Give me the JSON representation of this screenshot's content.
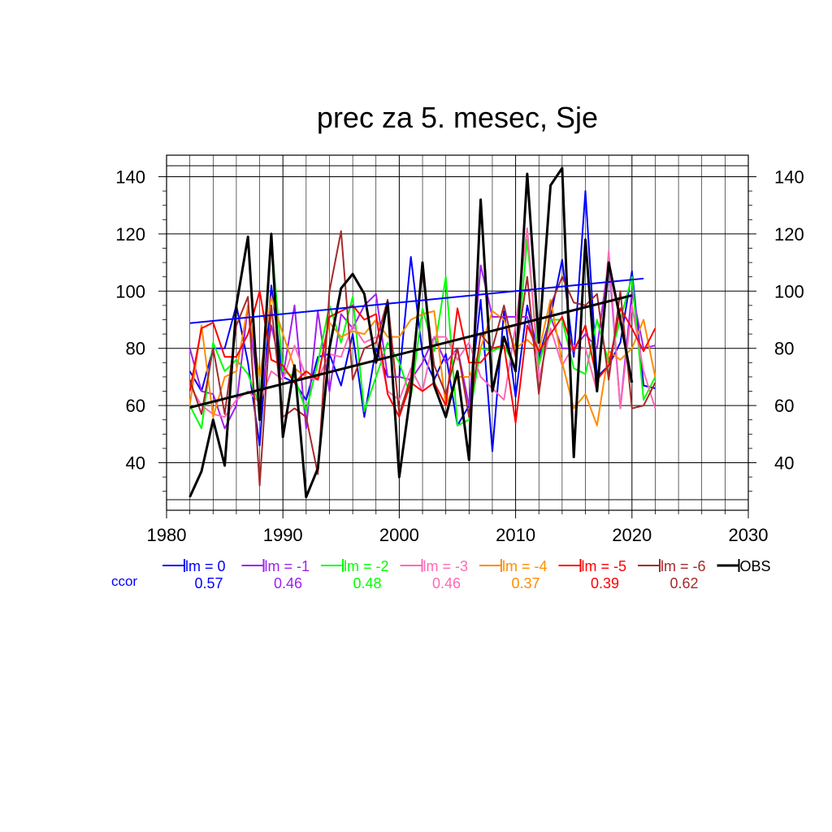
{
  "chart_data": {
    "type": "line",
    "title": "prec za 5. mesec, Sje",
    "xlabel": "",
    "ylabel": "",
    "xlim": [
      1980,
      2030
    ],
    "ylim": [
      26,
      144
    ],
    "xticks": [
      1980,
      1990,
      2000,
      2010,
      2020,
      2030
    ],
    "yticks": [
      40,
      60,
      80,
      100,
      120,
      140
    ],
    "grid": true,
    "legend_position": "bottom",
    "ccor_label": "ccor",
    "x": [
      1982,
      1983,
      1984,
      1985,
      1986,
      1987,
      1988,
      1989,
      1990,
      1991,
      1992,
      1993,
      1994,
      1995,
      1996,
      1997,
      1998,
      1999,
      2000,
      2001,
      2002,
      2003,
      2004,
      2005,
      2006,
      2007,
      2008,
      2009,
      2010,
      2011,
      2012,
      2013,
      2014,
      2015,
      2016,
      2017,
      2018,
      2019,
      2020,
      2021,
      2022
    ],
    "series": [
      {
        "name": "lm = 0",
        "ccor": "0.57",
        "color": "#0000ff",
        "values": [
          72,
          65,
          80,
          80,
          95,
          75,
          46,
          102,
          70,
          68,
          62,
          77,
          78,
          67,
          85,
          56,
          80,
          70,
          70,
          112,
          78,
          69,
          78,
          53,
          60,
          97,
          44,
          93,
          63,
          95,
          77,
          91,
          111,
          77,
          135,
          70,
          74,
          82,
          107,
          67,
          66
        ],
        "trend": {
          "start": [
            1982,
            88.8
          ],
          "end": [
            2021,
            104.4
          ]
        }
      },
      {
        "name": "lm = -1",
        "ccor": "0.46",
        "color": "#a020f0",
        "values": [
          80,
          65,
          64,
          52,
          60,
          95,
          60,
          88,
          70,
          95,
          52,
          93,
          65,
          92,
          87,
          95,
          99,
          70,
          70,
          69,
          75,
          84,
          75,
          80,
          60,
          109,
          91,
          91,
          91,
          91,
          75,
          91,
          80,
          80,
          85,
          80,
          111,
          59,
          100,
          80,
          81
        ]
      },
      {
        "name": "lm = -2",
        "ccor": "0.48",
        "color": "#00ff00",
        "values": [
          60,
          52,
          82,
          72,
          76,
          71,
          60,
          118,
          72,
          70,
          58,
          75,
          95,
          82,
          98,
          58,
          70,
          82,
          75,
          63,
          94,
          79,
          105,
          53,
          55,
          80,
          79,
          81,
          73,
          118,
          74,
          90,
          90,
          73,
          71,
          90,
          75,
          90,
          105,
          62,
          70
        ]
      },
      {
        "name": "lm = -3",
        "ccor": "0.46",
        "color": "#ff69b4",
        "values": [
          67,
          60,
          57,
          56,
          62,
          65,
          61,
          72,
          69,
          81,
          70,
          69,
          78,
          77,
          88,
          82,
          84,
          65,
          62,
          73,
          65,
          84,
          84,
          76,
          82,
          70,
          66,
          62,
          88,
          122,
          69,
          87,
          74,
          81,
          80,
          65,
          114,
          59,
          95,
          72,
          59
        ]
      },
      {
        "name": "lm = -4",
        "ccor": "0.37",
        "color": "#ff8c00",
        "values": [
          60,
          88,
          56,
          70,
          72,
          95,
          70,
          98,
          85,
          73,
          70,
          70,
          89,
          84,
          86,
          85,
          90,
          84,
          84,
          90,
          92,
          93,
          60,
          70,
          70,
          80,
          93,
          90,
          80,
          83,
          79,
          97,
          75,
          59,
          64,
          53,
          79,
          76,
          80,
          90,
          70
        ]
      },
      {
        "name": "lm = -5",
        "ccor": "0.39",
        "color": "#ff0000",
        "values": [
          65,
          87,
          89,
          77,
          77,
          85,
          100,
          76,
          74,
          68,
          72,
          69,
          91,
          93,
          95,
          90,
          92,
          64,
          56,
          68,
          65,
          68,
          60,
          94,
          75,
          75,
          80,
          81,
          54,
          88,
          79,
          85,
          91,
          79,
          88,
          69,
          74,
          94,
          87,
          79,
          87
        ]
      },
      {
        "name": "lm = -6",
        "ccor": "0.62",
        "color": "#a52a2a",
        "values": [
          69,
          57,
          80,
          57,
          88,
          98,
          32,
          95,
          56,
          59,
          56,
          36,
          100,
          121,
          69,
          80,
          82,
          97,
          57,
          70,
          107,
          74,
          64,
          80,
          56,
          85,
          80,
          95,
          77,
          105,
          64,
          95,
          105,
          96,
          95,
          99,
          69,
          100,
          59,
          60,
          68
        ]
      },
      {
        "name": "OBS",
        "ccor": "",
        "color": "#000000",
        "values": [
          28,
          37,
          55,
          39,
          95,
          119,
          55,
          120,
          49,
          74,
          28,
          38,
          80,
          101,
          106,
          99,
          75,
          96,
          35,
          65,
          110,
          67,
          56,
          72,
          41,
          132,
          65,
          84,
          72,
          141,
          82,
          137,
          143,
          42,
          118,
          65,
          110,
          90,
          68,
          null,
          null
        ],
        "trend": {
          "start": [
            1982,
            59.3
          ],
          "end": [
            2020,
            98.5
          ]
        }
      }
    ]
  }
}
